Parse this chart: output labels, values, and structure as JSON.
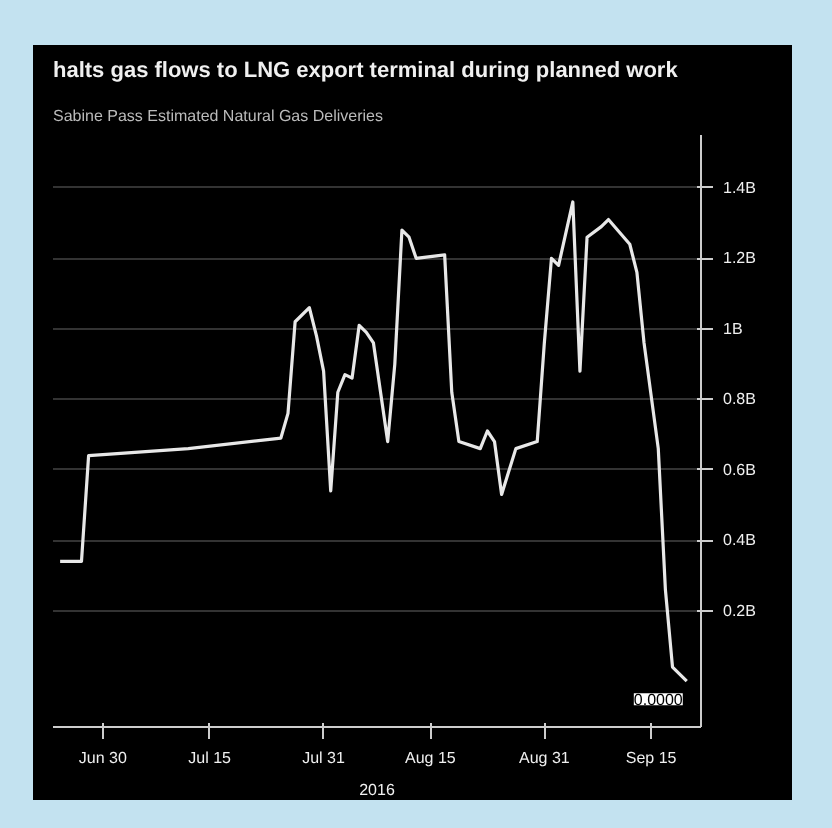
{
  "chart_data": {
    "type": "line",
    "title": "halts gas flows to LNG export terminal during planned work",
    "subtitle": "Sabine Pass Estimated Natural Gas Deliveries",
    "xlabel": "2016",
    "x": [
      "2016-06-24",
      "2016-06-27",
      "2016-06-28",
      "2016-07-12",
      "2016-07-25",
      "2016-07-26",
      "2016-07-27",
      "2016-07-29",
      "2016-07-30",
      "2016-07-31",
      "2016-08-01",
      "2016-08-02",
      "2016-08-03",
      "2016-08-04",
      "2016-08-05",
      "2016-08-06",
      "2016-08-07",
      "2016-08-09",
      "2016-08-10",
      "2016-08-11",
      "2016-08-12",
      "2016-08-13",
      "2016-08-17",
      "2016-08-18",
      "2016-08-19",
      "2016-08-22",
      "2016-08-23",
      "2016-08-24",
      "2016-08-25",
      "2016-08-27",
      "2016-08-30",
      "2016-08-31",
      "2016-09-01",
      "2016-09-02",
      "2016-09-04",
      "2016-09-05",
      "2016-09-06",
      "2016-09-08",
      "2016-09-09",
      "2016-09-12",
      "2016-09-13",
      "2016-09-14",
      "2016-09-16",
      "2016-09-17",
      "2016-09-18",
      "2016-09-20"
    ],
    "series": [
      {
        "color": "#e8e8e8",
        "values": [
          0.34,
          0.34,
          0.64,
          0.66,
          0.69,
          0.76,
          1.02,
          1.06,
          0.98,
          0.88,
          0.54,
          0.82,
          0.87,
          0.86,
          1.01,
          0.99,
          0.96,
          0.68,
          0.9,
          1.28,
          1.26,
          1.2,
          1.21,
          0.82,
          0.68,
          0.66,
          0.71,
          0.68,
          0.53,
          0.66,
          0.68,
          0.96,
          1.2,
          1.18,
          1.36,
          0.88,
          1.26,
          1.29,
          1.31,
          1.24,
          1.16,
          0.96,
          0.66,
          0.26,
          0.04,
          0
        ]
      }
    ],
    "xlim": [
      "2016-06-23",
      "2016-09-22"
    ],
    "xticks": [
      {
        "value": "2016-06-30",
        "label": "Jun 30"
      },
      {
        "value": "2016-07-15",
        "label": "Jul 15"
      },
      {
        "value": "2016-07-31",
        "label": "Jul 31"
      },
      {
        "value": "2016-08-15",
        "label": "Aug 15"
      },
      {
        "value": "2016-08-31",
        "label": "Aug 31"
      },
      {
        "value": "2016-09-15",
        "label": "Sep 15"
      }
    ],
    "ylim": [
      -0.13,
      1.55
    ],
    "yticks": [
      {
        "value": 0.2,
        "label": "0.2B"
      },
      {
        "value": 0.4,
        "label": "0.4B"
      },
      {
        "value": 0.6,
        "label": "0.6B"
      },
      {
        "value": 0.8,
        "label": "0.8B"
      },
      {
        "value": 1,
        "label": "1B"
      },
      {
        "value": 1.2,
        "label": "1.2B"
      },
      {
        "value": 1.4,
        "label": "1.4B"
      }
    ],
    "annotations": [
      {
        "text": "0.0000",
        "x": "2016-09-20",
        "y": 0
      }
    ],
    "grid": "y",
    "line_style": "solid",
    "marker": "none"
  }
}
